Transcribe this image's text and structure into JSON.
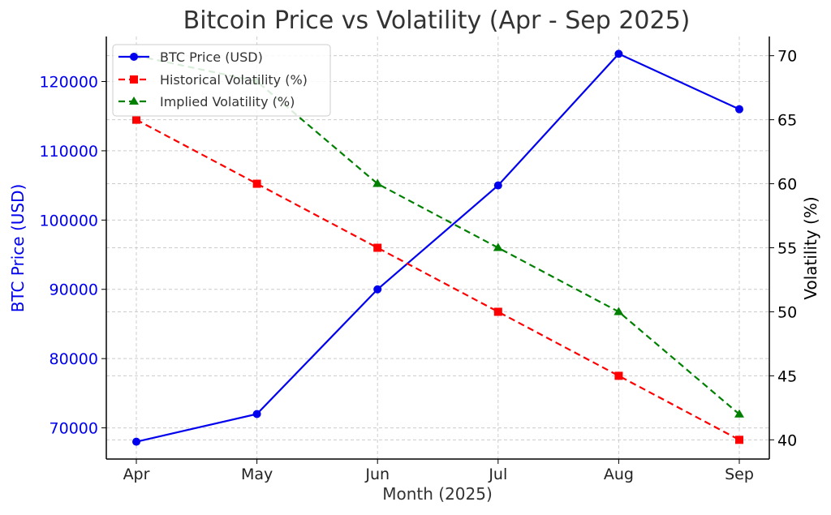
{
  "chart_data": {
    "type": "line",
    "title": "Bitcoin Price vs Volatility (Apr - Sep 2025)",
    "xlabel": "Month (2025)",
    "ylabel_left": "BTC Price (USD)",
    "ylabel_right": "Volatility (%)",
    "categories": [
      "Apr",
      "May",
      "Jun",
      "Jul",
      "Aug",
      "Sep"
    ],
    "y_left": {
      "lim": [
        65500,
        126500
      ],
      "ticks": [
        70000,
        80000,
        90000,
        100000,
        110000,
        120000
      ],
      "tick_labels": [
        "70000",
        "80000",
        "90000",
        "100000",
        "110000",
        "120000"
      ]
    },
    "y_right": {
      "lim": [
        38.5,
        71.5
      ],
      "ticks": [
        40,
        45,
        50,
        55,
        60,
        65,
        70
      ],
      "tick_labels": [
        "40",
        "45",
        "50",
        "55",
        "60",
        "65",
        "70"
      ]
    },
    "grid": true,
    "legend_position": "top-left",
    "series": [
      {
        "name": "BTC Price (USD)",
        "axis": "left",
        "values": [
          68000,
          72000,
          90000,
          105000,
          124000,
          116000
        ],
        "color": "#0000ee",
        "style": "solid",
        "marker": "circle"
      },
      {
        "name": "Historical Volatility (%)",
        "axis": "right",
        "values": [
          65,
          60,
          55,
          50,
          45,
          40
        ],
        "color": "#ff0000",
        "style": "dashed",
        "marker": "square"
      },
      {
        "name": "Implied Volatility (%)",
        "axis": "right",
        "values": [
          70,
          68,
          60,
          55,
          50,
          42
        ],
        "color": "#008000",
        "style": "dashed",
        "marker": "triangle"
      }
    ],
    "colors": {
      "left_axis": "#0000ee",
      "right_axis": "#000000",
      "grid": "#cccccc"
    }
  }
}
